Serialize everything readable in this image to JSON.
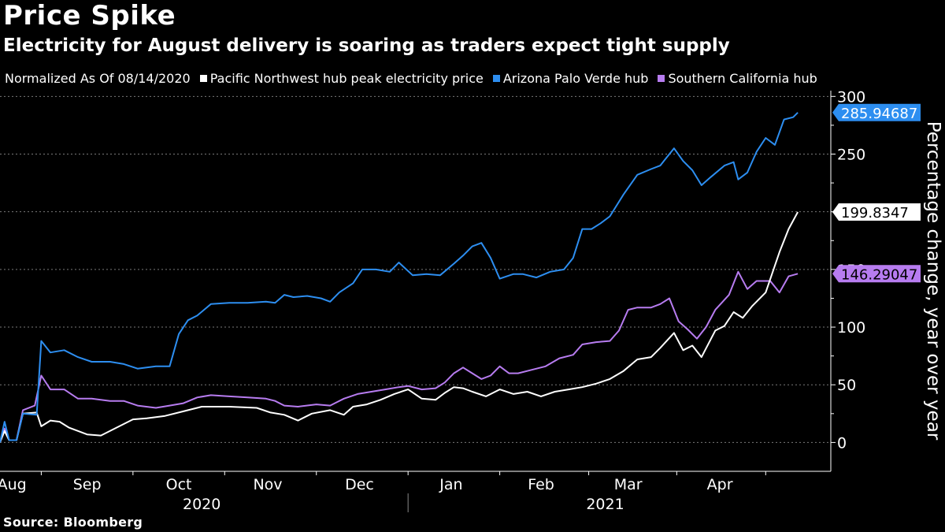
{
  "title": "Price Spike",
  "subtitle": "Electricity for August delivery is soaring as traders expect tight supply",
  "source": "Source: Bloomberg",
  "legend": {
    "normalized": "Normalized As Of 08/14/2020",
    "items": [
      {
        "label": "Pacific Northwest hub peak electricity price",
        "color": "#ffffff"
      },
      {
        "label": "Arizona Palo Verde hub",
        "color": "#2d8ef0"
      },
      {
        "label": "Southern California hub",
        "color": "#b77cf0"
      }
    ]
  },
  "chart_data": {
    "type": "line",
    "title": "Price Spike",
    "ylabel": "Percentage change, year over year",
    "ylim": [
      -25,
      305
    ],
    "yticks": [
      0,
      50,
      100,
      150,
      200,
      250,
      300
    ],
    "ytick_labels": [
      "0",
      "50",
      "100",
      "150",
      "200",
      "250",
      "300"
    ],
    "xlim": [
      0,
      9.0
    ],
    "month_labels": [
      {
        "label": "Aug",
        "pos": 0.13
      },
      {
        "label": "Sep",
        "pos": 0.95
      },
      {
        "label": "Oct",
        "pos": 1.95
      },
      {
        "label": "Nov",
        "pos": 2.92
      },
      {
        "label": "Dec",
        "pos": 3.92
      },
      {
        "label": "Jan",
        "pos": 4.92
      },
      {
        "label": "Feb",
        "pos": 5.9
      },
      {
        "label": "Mar",
        "pos": 6.85
      },
      {
        "label": "Apr",
        "pos": 7.85
      }
    ],
    "month_ticks": [
      0.45,
      1.45,
      2.45,
      3.45,
      4.45,
      5.45,
      6.42,
      7.38,
      8.35
    ],
    "year_labels": [
      {
        "label": "2020",
        "pos": 2.2
      },
      {
        "label": "2021",
        "pos": 6.6
      }
    ],
    "year_divider": 4.45,
    "series": [
      {
        "name": "Pacific Northwest hub peak electricity price",
        "color": "#ffffff",
        "end_label": "199.8347",
        "label_text_color": "#000000",
        "points": [
          [
            0,
            0
          ],
          [
            0.05,
            10
          ],
          [
            0.1,
            2
          ],
          [
            0.18,
            2
          ],
          [
            0.25,
            25
          ],
          [
            0.4,
            26
          ],
          [
            0.45,
            14
          ],
          [
            0.55,
            19
          ],
          [
            0.65,
            18
          ],
          [
            0.75,
            13
          ],
          [
            0.85,
            10
          ],
          [
            0.95,
            7
          ],
          [
            1.1,
            6
          ],
          [
            1.3,
            14
          ],
          [
            1.45,
            20
          ],
          [
            1.6,
            21
          ],
          [
            1.8,
            23
          ],
          [
            2.0,
            27
          ],
          [
            2.2,
            31
          ],
          [
            2.5,
            31
          ],
          [
            2.8,
            30
          ],
          [
            2.95,
            26
          ],
          [
            3.1,
            24
          ],
          [
            3.25,
            19
          ],
          [
            3.4,
            25
          ],
          [
            3.6,
            28
          ],
          [
            3.75,
            24
          ],
          [
            3.85,
            31
          ],
          [
            4.0,
            33
          ],
          [
            4.15,
            37
          ],
          [
            4.3,
            42
          ],
          [
            4.45,
            46
          ],
          [
            4.6,
            38
          ],
          [
            4.75,
            37
          ],
          [
            4.85,
            43
          ],
          [
            4.95,
            48
          ],
          [
            5.05,
            47
          ],
          [
            5.15,
            44
          ],
          [
            5.3,
            40
          ],
          [
            5.45,
            46
          ],
          [
            5.6,
            42
          ],
          [
            5.75,
            44
          ],
          [
            5.9,
            40
          ],
          [
            6.05,
            44
          ],
          [
            6.2,
            46
          ],
          [
            6.35,
            48
          ],
          [
            6.5,
            51
          ],
          [
            6.65,
            55
          ],
          [
            6.8,
            62
          ],
          [
            6.95,
            72
          ],
          [
            7.1,
            74
          ],
          [
            7.2,
            82
          ],
          [
            7.35,
            95
          ],
          [
            7.45,
            80
          ],
          [
            7.55,
            84
          ],
          [
            7.65,
            74
          ],
          [
            7.8,
            97
          ],
          [
            7.9,
            101
          ],
          [
            8.0,
            113
          ],
          [
            8.1,
            108
          ],
          [
            8.2,
            118
          ],
          [
            8.35,
            130
          ],
          [
            8.5,
            165
          ],
          [
            8.6,
            185
          ],
          [
            8.7,
            199.8
          ]
        ]
      },
      {
        "name": "Arizona Palo Verde hub",
        "color": "#2d8ef0",
        "end_label": "285.94687",
        "label_text_color": "#ffffff",
        "points": [
          [
            0,
            0
          ],
          [
            0.05,
            18
          ],
          [
            0.1,
            2
          ],
          [
            0.18,
            2
          ],
          [
            0.25,
            25
          ],
          [
            0.4,
            24
          ],
          [
            0.45,
            88
          ],
          [
            0.55,
            78
          ],
          [
            0.7,
            80
          ],
          [
            0.85,
            74
          ],
          [
            1.0,
            70
          ],
          [
            1.2,
            70
          ],
          [
            1.35,
            68
          ],
          [
            1.5,
            64
          ],
          [
            1.7,
            66
          ],
          [
            1.85,
            66
          ],
          [
            1.95,
            94
          ],
          [
            2.05,
            106
          ],
          [
            2.15,
            110
          ],
          [
            2.3,
            120
          ],
          [
            2.5,
            121
          ],
          [
            2.7,
            121
          ],
          [
            2.9,
            122
          ],
          [
            3.0,
            121
          ],
          [
            3.1,
            128
          ],
          [
            3.2,
            126
          ],
          [
            3.35,
            127
          ],
          [
            3.5,
            125
          ],
          [
            3.6,
            122
          ],
          [
            3.7,
            130
          ],
          [
            3.85,
            138
          ],
          [
            3.95,
            150
          ],
          [
            4.1,
            150
          ],
          [
            4.25,
            148
          ],
          [
            4.35,
            156
          ],
          [
            4.5,
            145
          ],
          [
            4.65,
            146
          ],
          [
            4.8,
            145
          ],
          [
            4.95,
            155
          ],
          [
            5.05,
            162
          ],
          [
            5.15,
            170
          ],
          [
            5.25,
            173
          ],
          [
            5.35,
            160
          ],
          [
            5.45,
            142
          ],
          [
            5.6,
            146
          ],
          [
            5.7,
            146
          ],
          [
            5.85,
            143
          ],
          [
            6.0,
            148
          ],
          [
            6.15,
            150
          ],
          [
            6.25,
            160
          ],
          [
            6.35,
            185
          ],
          [
            6.45,
            185
          ],
          [
            6.55,
            190
          ],
          [
            6.65,
            196
          ],
          [
            6.8,
            215
          ],
          [
            6.95,
            232
          ],
          [
            7.1,
            237
          ],
          [
            7.2,
            240
          ],
          [
            7.25,
            245
          ],
          [
            7.35,
            255
          ],
          [
            7.45,
            244
          ],
          [
            7.55,
            236
          ],
          [
            7.65,
            223
          ],
          [
            7.75,
            230
          ],
          [
            7.9,
            240
          ],
          [
            8.0,
            243
          ],
          [
            8.05,
            228
          ],
          [
            8.15,
            234
          ],
          [
            8.25,
            252
          ],
          [
            8.35,
            264
          ],
          [
            8.45,
            258
          ],
          [
            8.55,
            280
          ],
          [
            8.65,
            282
          ],
          [
            8.7,
            286
          ]
        ]
      },
      {
        "name": "Southern California hub",
        "color": "#b77cf0",
        "end_label": "146.29047",
        "label_text_color": "#000000",
        "points": [
          [
            0,
            0
          ],
          [
            0.05,
            12
          ],
          [
            0.1,
            2
          ],
          [
            0.18,
            2
          ],
          [
            0.25,
            28
          ],
          [
            0.38,
            32
          ],
          [
            0.45,
            58
          ],
          [
            0.55,
            46
          ],
          [
            0.7,
            46
          ],
          [
            0.85,
            38
          ],
          [
            1.0,
            38
          ],
          [
            1.2,
            36
          ],
          [
            1.35,
            36
          ],
          [
            1.5,
            32
          ],
          [
            1.7,
            30
          ],
          [
            1.85,
            32
          ],
          [
            2.0,
            34
          ],
          [
            2.15,
            39
          ],
          [
            2.3,
            41
          ],
          [
            2.5,
            40
          ],
          [
            2.7,
            39
          ],
          [
            2.9,
            38
          ],
          [
            3.0,
            36
          ],
          [
            3.1,
            32
          ],
          [
            3.25,
            31
          ],
          [
            3.45,
            33
          ],
          [
            3.6,
            32
          ],
          [
            3.75,
            38
          ],
          [
            3.9,
            42
          ],
          [
            4.05,
            44
          ],
          [
            4.2,
            46
          ],
          [
            4.35,
            48
          ],
          [
            4.45,
            49
          ],
          [
            4.6,
            46
          ],
          [
            4.75,
            47
          ],
          [
            4.85,
            52
          ],
          [
            4.95,
            60
          ],
          [
            5.05,
            65
          ],
          [
            5.15,
            60
          ],
          [
            5.25,
            55
          ],
          [
            5.35,
            58
          ],
          [
            5.45,
            66
          ],
          [
            5.55,
            60
          ],
          [
            5.65,
            60
          ],
          [
            5.8,
            63
          ],
          [
            5.95,
            66
          ],
          [
            6.1,
            73
          ],
          [
            6.25,
            76
          ],
          [
            6.35,
            85
          ],
          [
            6.5,
            87
          ],
          [
            6.65,
            88
          ],
          [
            6.75,
            97
          ],
          [
            6.85,
            115
          ],
          [
            6.95,
            117
          ],
          [
            7.1,
            117
          ],
          [
            7.2,
            120
          ],
          [
            7.3,
            125
          ],
          [
            7.4,
            105
          ],
          [
            7.5,
            98
          ],
          [
            7.6,
            90
          ],
          [
            7.7,
            100
          ],
          [
            7.8,
            115
          ],
          [
            7.95,
            128
          ],
          [
            8.05,
            148
          ],
          [
            8.15,
            133
          ],
          [
            8.25,
            140
          ],
          [
            8.4,
            140
          ],
          [
            8.5,
            130
          ],
          [
            8.6,
            144
          ],
          [
            8.7,
            146.3
          ]
        ]
      }
    ]
  }
}
